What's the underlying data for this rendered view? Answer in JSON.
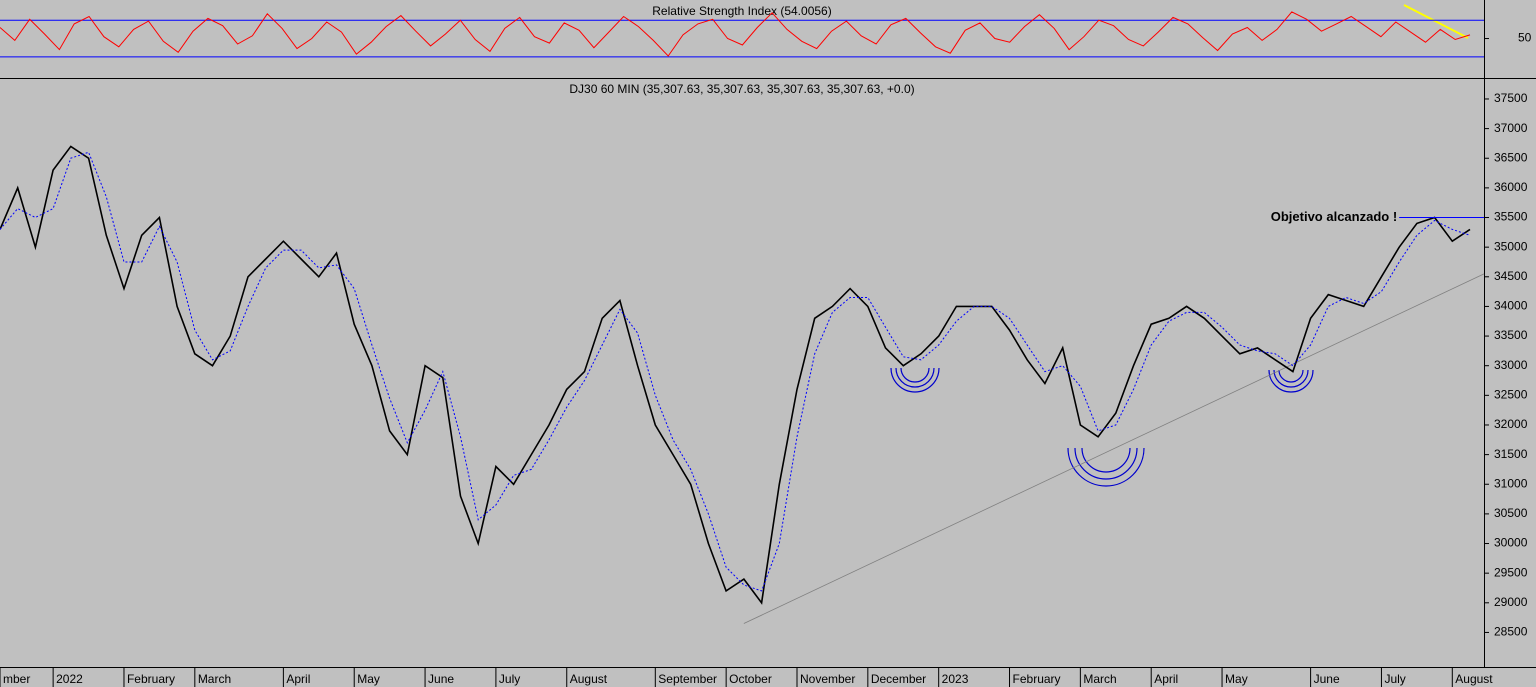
{
  "chart_data": [
    {
      "type": "line",
      "title": "Relative Strength Index (54.0056)",
      "color": "#ff0000",
      "ylim": [
        7,
        92
      ],
      "yticks": [
        50
      ],
      "levels": [
        30,
        70
      ],
      "level_color": "#0000ff",
      "values": [
        62,
        48,
        71,
        55,
        38,
        66,
        74,
        52,
        41,
        60,
        69,
        47,
        35,
        58,
        72,
        64,
        44,
        53,
        77,
        61,
        39,
        50,
        68,
        57,
        33,
        46,
        63,
        75,
        58,
        42,
        55,
        70,
        49,
        36,
        61,
        73,
        52,
        45,
        67,
        59,
        40,
        57,
        74,
        63,
        48,
        31,
        54,
        66,
        71,
        50,
        43,
        62,
        78,
        60,
        47,
        39,
        58,
        69,
        53,
        44,
        65,
        72,
        56,
        41,
        34,
        59,
        67,
        50,
        46,
        63,
        76,
        61,
        38,
        52,
        70,
        64,
        49,
        42,
        57,
        73,
        66,
        51,
        37,
        55,
        62,
        48,
        60,
        79,
        71,
        58,
        66,
        74,
        63,
        52,
        68,
        57,
        46,
        60,
        49,
        54
      ]
    },
    {
      "type": "line",
      "title": "DJ30 60 MIN (35,307.63, 35,307.63, 35,307.63, 35,307.63, +0.0)",
      "categories": [
        "mber",
        null,
        null,
        "2022",
        null,
        null,
        null,
        "February",
        null,
        null,
        null,
        "March",
        null,
        null,
        null,
        null,
        "April",
        null,
        null,
        null,
        "May",
        null,
        null,
        null,
        "June",
        null,
        null,
        null,
        "July",
        null,
        null,
        null,
        "August",
        null,
        null,
        null,
        null,
        "September",
        null,
        null,
        null,
        "October",
        null,
        null,
        null,
        "November",
        null,
        null,
        null,
        "December",
        null,
        null,
        null,
        "2023",
        null,
        null,
        null,
        "February",
        null,
        null,
        null,
        "March",
        null,
        null,
        null,
        "April",
        null,
        null,
        null,
        "May",
        null,
        null,
        null,
        null,
        "June",
        null,
        null,
        null,
        "July",
        null,
        null,
        null,
        "August",
        null
      ],
      "series": [
        {
          "color": "#000000",
          "values": [
            35300,
            36000,
            35000,
            36300,
            36700,
            36500,
            35200,
            34300,
            35200,
            35500,
            34000,
            33200,
            33000,
            33500,
            34500,
            34800,
            35100,
            34800,
            34500,
            34900,
            33700,
            33000,
            31900,
            31500,
            33000,
            32800,
            30800,
            30000,
            31300,
            31000,
            31500,
            32000,
            32600,
            32900,
            33800,
            34100,
            33000,
            32000,
            31500,
            31000,
            30000,
            29200,
            29400,
            29000,
            31000,
            32600,
            33800,
            34000,
            34300,
            34000,
            33300,
            33000,
            33200,
            33500,
            34000,
            34000,
            34000,
            33600,
            33100,
            32700,
            33300,
            32000,
            31800,
            32200,
            33000,
            33700,
            33800,
            34000,
            33800,
            33500,
            33200,
            33300,
            33100,
            32900,
            33800,
            34200,
            34100,
            34000,
            34500,
            35000,
            35400,
            35500,
            35100,
            35300
          ]
        },
        {
          "color": "#0000ff",
          "dashed": true,
          "values": [
            35300,
            35650,
            35500,
            35650,
            36500,
            36600,
            35850,
            34750,
            34750,
            35350,
            34750,
            33600,
            33100,
            33250,
            34000,
            34650,
            34950,
            34950,
            34650,
            34700,
            34300,
            33350,
            32450,
            31700,
            32250,
            32900,
            31800,
            30400,
            30650,
            31150,
            31250,
            31750,
            32300,
            32750,
            33350,
            33950,
            33550,
            32500,
            31750,
            31250,
            30500,
            29600,
            29300,
            29200,
            30000,
            31800,
            33200,
            33900,
            34150,
            34150,
            33650,
            33150,
            33100,
            33350,
            33750,
            34000,
            34000,
            33800,
            33350,
            32900,
            33000,
            32650,
            31900,
            32000,
            32600,
            33350,
            33750,
            33900,
            33900,
            33650,
            33350,
            33250,
            33200,
            33000,
            33350,
            34000,
            34150,
            34050,
            34250,
            34750,
            35200,
            35450,
            35300,
            35200
          ]
        }
      ],
      "ylim": [
        27900,
        37820
      ],
      "yticks": [
        28500,
        29000,
        29500,
        30000,
        30500,
        31000,
        31500,
        32000,
        32500,
        33000,
        33500,
        34000,
        34500,
        35000,
        35500,
        36000,
        36500,
        37000,
        37500
      ],
      "trendline": {
        "from": [
          42,
          28650
        ],
        "to": [
          84,
          34550
        ],
        "color": "#808080"
      },
      "annotation": {
        "text": "Objetivo alcanzado !",
        "value": 35500,
        "from": 79,
        "color": "#0000ff"
      }
    }
  ]
}
